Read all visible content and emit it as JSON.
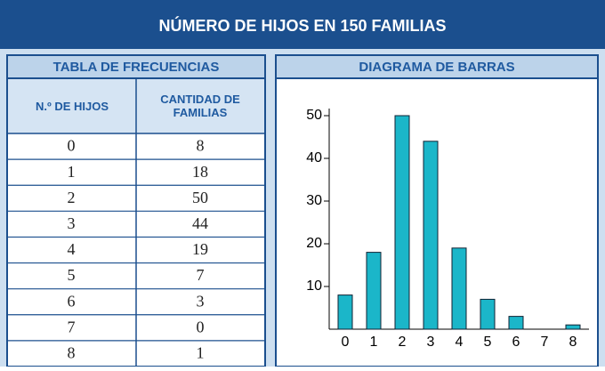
{
  "title": "NÚMERO DE HIJOS EN 150 FAMILIAS",
  "table": {
    "title": "TABLA DE FRECUENCIAS",
    "columns": [
      "N.º DE HIJOS",
      "CANTIDAD DE FAMILIAS"
    ]
  },
  "chart_data": {
    "type": "bar",
    "title": "DIAGRAMA DE BARRAS",
    "categories": [
      "0",
      "1",
      "2",
      "3",
      "4",
      "5",
      "6",
      "7",
      "8"
    ],
    "values": [
      8,
      18,
      50,
      44,
      19,
      7,
      3,
      0,
      1
    ],
    "color": "#1bb6c9",
    "ylim": [
      0,
      50
    ],
    "yticks": [
      10,
      20,
      30,
      40,
      50
    ],
    "grid": false
  }
}
